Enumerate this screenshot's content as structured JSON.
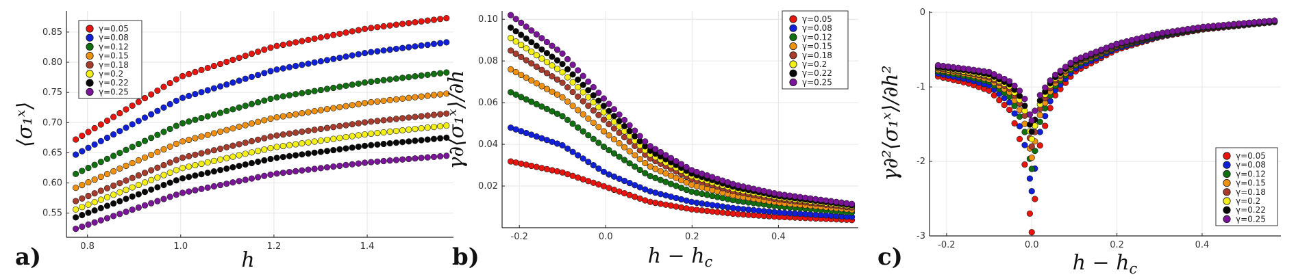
{
  "series_names": [
    "γ=0.05",
    "γ=0.08",
    "γ=0.12",
    "γ=0.15",
    "γ=0.18",
    "γ=0.2",
    "γ=0.22",
    "γ=0.25"
  ],
  "series_colors": [
    "#e8140e",
    "#1020d8",
    "#107010",
    "#f09010",
    "#a83c2c",
    "#f4f014",
    "#080808",
    "#7a1498"
  ],
  "chart_data": [
    {
      "type": "scatter",
      "panel": "a)",
      "xlabel": "h",
      "ylabel": "⟨σ₁ˣ⟩",
      "xlim": [
        0.755,
        1.585
      ],
      "ylim": [
        0.51,
        0.885
      ],
      "xticks": [
        0.8,
        1.0,
        1.2,
        1.4
      ],
      "xtick_labels": [
        "0.8",
        "1.0",
        "1.2",
        "1.4"
      ],
      "yticks": [
        0.55,
        0.6,
        0.65,
        0.7,
        0.75,
        0.8,
        0.85
      ],
      "ytick_labels": [
        "0.55",
        "0.60",
        "0.65",
        "0.70",
        "0.75",
        "0.80",
        "0.85"
      ],
      "grid": true,
      "legend": "top-left",
      "series": [
        {
          "name": "γ=0.05",
          "x": [
            0.775,
            1.0,
            1.2,
            1.4,
            1.57
          ],
          "y": [
            0.672,
            0.776,
            0.826,
            0.856,
            0.873
          ]
        },
        {
          "name": "γ=0.08",
          "x": [
            0.775,
            1.0,
            1.2,
            1.4,
            1.57
          ],
          "y": [
            0.647,
            0.74,
            0.787,
            0.816,
            0.833
          ]
        },
        {
          "name": "γ=0.12",
          "x": [
            0.775,
            1.0,
            1.2,
            1.4,
            1.57
          ],
          "y": [
            0.615,
            0.698,
            0.741,
            0.767,
            0.783
          ]
        },
        {
          "name": "γ=0.15",
          "x": [
            0.775,
            1.0,
            1.2,
            1.4,
            1.57
          ],
          "y": [
            0.592,
            0.668,
            0.708,
            0.733,
            0.748
          ]
        },
        {
          "name": "γ=0.18",
          "x": [
            0.775,
            1.0,
            1.2,
            1.4,
            1.57
          ],
          "y": [
            0.57,
            0.641,
            0.678,
            0.701,
            0.715
          ]
        },
        {
          "name": "γ=0.2",
          "x": [
            0.775,
            1.0,
            1.2,
            1.4,
            1.57
          ],
          "y": [
            0.556,
            0.624,
            0.659,
            0.681,
            0.695
          ]
        },
        {
          "name": "γ=0.22",
          "x": [
            0.775,
            1.0,
            1.2,
            1.4,
            1.57
          ],
          "y": [
            0.543,
            0.607,
            0.641,
            0.662,
            0.675
          ]
        },
        {
          "name": "γ=0.25",
          "x": [
            0.775,
            1.0,
            1.2,
            1.4,
            1.57
          ],
          "y": [
            0.524,
            0.583,
            0.615,
            0.634,
            0.645
          ]
        }
      ]
    },
    {
      "type": "scatter",
      "panel": "b)",
      "xlabel": "h − h_c",
      "ylabel": "γ∂⟨σ₁ˣ⟩/∂h",
      "xlim": [
        -0.24,
        0.585
      ],
      "ylim": [
        0.0,
        0.104
      ],
      "xticks": [
        -0.2,
        0.0,
        0.2,
        0.4
      ],
      "xtick_labels": [
        "-0.2",
        "0.0",
        "0.2",
        "0.4"
      ],
      "yticks": [
        0.02,
        0.04,
        0.06,
        0.08,
        0.1
      ],
      "ytick_labels": [
        "0.02",
        "0.04",
        "0.06",
        "0.08",
        "0.10"
      ],
      "grid": true,
      "legend": "top-right",
      "series": [
        {
          "name": "γ=0.05",
          "x": [
            -0.22,
            -0.1,
            0.0,
            0.1,
            0.2,
            0.3,
            0.4,
            0.57
          ],
          "y": [
            0.0318,
            0.0265,
            0.0196,
            0.0125,
            0.0088,
            0.0066,
            0.0052,
            0.0037
          ]
        },
        {
          "name": "γ=0.08",
          "x": [
            -0.22,
            -0.1,
            0.0,
            0.1,
            0.2,
            0.3,
            0.4,
            0.57
          ],
          "y": [
            0.048,
            0.0395,
            0.0262,
            0.0176,
            0.0123,
            0.0093,
            0.0073,
            0.0052
          ]
        },
        {
          "name": "γ=0.12",
          "x": [
            -0.22,
            -0.1,
            0.0,
            0.1,
            0.2,
            0.3,
            0.4,
            0.57
          ],
          "y": [
            0.065,
            0.0535,
            0.0382,
            0.025,
            0.0172,
            0.013,
            0.0102,
            0.0073
          ]
        },
        {
          "name": "γ=0.15",
          "x": [
            -0.22,
            -0.1,
            0.0,
            0.1,
            0.2,
            0.3,
            0.4,
            0.57
          ],
          "y": [
            0.076,
            0.0625,
            0.0455,
            0.0296,
            0.0205,
            0.0153,
            0.012,
            0.0086
          ]
        },
        {
          "name": "γ=0.18",
          "x": [
            -0.22,
            -0.1,
            0.0,
            0.1,
            0.2,
            0.3,
            0.4,
            0.57
          ],
          "y": [
            0.085,
            0.0695,
            0.051,
            0.0335,
            0.0232,
            0.0173,
            0.0136,
            0.0097
          ]
        },
        {
          "name": "γ=0.2",
          "x": [
            -0.22,
            -0.1,
            0.0,
            0.1,
            0.2,
            0.3,
            0.4,
            0.57
          ],
          "y": [
            0.091,
            0.0745,
            0.0545,
            0.0355,
            0.0247,
            0.0184,
            0.0145,
            0.0103
          ]
        },
        {
          "name": "γ=0.22",
          "x": [
            -0.22,
            -0.1,
            0.0,
            0.1,
            0.2,
            0.3,
            0.4,
            0.57
          ],
          "y": [
            0.096,
            0.0785,
            0.0575,
            0.0373,
            0.0259,
            0.0194,
            0.0152,
            0.0108
          ]
        },
        {
          "name": "γ=0.25",
          "x": [
            -0.22,
            -0.1,
            0.0,
            0.1,
            0.2,
            0.3,
            0.4,
            0.57
          ],
          "y": [
            0.102,
            0.0835,
            0.061,
            0.0395,
            0.0275,
            0.0206,
            0.0161,
            0.0114
          ]
        }
      ]
    },
    {
      "type": "scatter",
      "panel": "c)",
      "xlabel": "h − h_c",
      "ylabel": "γ∂²⟨σ₁ˣ⟩/∂h²",
      "xlim": [
        -0.24,
        0.585
      ],
      "ylim": [
        -3.0,
        0.02
      ],
      "xticks": [
        -0.2,
        0.0,
        0.2,
        0.4
      ],
      "xtick_labels": [
        "-0.2",
        "0.0",
        "0.2",
        "0.4"
      ],
      "yticks": [
        -3,
        -2,
        -1,
        0
      ],
      "ytick_labels": [
        "-3",
        "-2",
        "-1",
        "0"
      ],
      "grid": true,
      "legend": "bottom-right",
      "series": [
        {
          "name": "γ=0.05",
          "x": [
            -0.22,
            -0.15,
            -0.1,
            -0.05,
            -0.02,
            0.0,
            0.02,
            0.05,
            0.1,
            0.2,
            0.3,
            0.4,
            0.57
          ],
          "y": [
            -0.86,
            -0.95,
            -1.05,
            -1.32,
            -1.85,
            -2.95,
            -1.75,
            -1.15,
            -0.8,
            -0.5,
            -0.33,
            -0.23,
            -0.13
          ]
        },
        {
          "name": "γ=0.08",
          "x": [
            -0.22,
            -0.15,
            -0.1,
            -0.05,
            -0.02,
            0.0,
            0.02,
            0.05,
            0.1,
            0.2,
            0.3,
            0.4,
            0.57
          ],
          "y": [
            -0.82,
            -0.9,
            -0.98,
            -1.22,
            -1.65,
            -2.4,
            -1.58,
            -1.08,
            -0.76,
            -0.48,
            -0.32,
            -0.22,
            -0.125
          ]
        },
        {
          "name": "γ=0.12",
          "x": [
            -0.22,
            -0.15,
            -0.1,
            -0.05,
            -0.02,
            0.0,
            0.02,
            0.05,
            0.1,
            0.2,
            0.3,
            0.4,
            0.57
          ],
          "y": [
            -0.79,
            -0.86,
            -0.93,
            -1.14,
            -1.5,
            -2.1,
            -1.45,
            -1.02,
            -0.72,
            -0.46,
            -0.31,
            -0.215,
            -0.12
          ]
        },
        {
          "name": "γ=0.15",
          "x": [
            -0.22,
            -0.15,
            -0.1,
            -0.05,
            -0.02,
            0.0,
            0.02,
            0.05,
            0.1,
            0.2,
            0.3,
            0.4,
            0.57
          ],
          "y": [
            -0.77,
            -0.83,
            -0.9,
            -1.08,
            -1.4,
            -1.95,
            -1.36,
            -0.98,
            -0.7,
            -0.45,
            -0.3,
            -0.21,
            -0.118
          ]
        },
        {
          "name": "γ=0.18",
          "x": [
            -0.22,
            -0.15,
            -0.1,
            -0.05,
            -0.02,
            0.0,
            0.02,
            0.05,
            0.1,
            0.2,
            0.3,
            0.4,
            0.57
          ],
          "y": [
            -0.75,
            -0.81,
            -0.87,
            -1.03,
            -1.3,
            -1.8,
            -1.28,
            -0.94,
            -0.68,
            -0.44,
            -0.295,
            -0.205,
            -0.115
          ]
        },
        {
          "name": "γ=0.2",
          "x": [
            -0.22,
            -0.15,
            -0.1,
            -0.05,
            -0.02,
            0.0,
            0.02,
            0.05,
            0.1,
            0.2,
            0.3,
            0.4,
            0.57
          ],
          "y": [
            -0.74,
            -0.8,
            -0.85,
            -1.0,
            -1.24,
            -1.7,
            -1.22,
            -0.91,
            -0.67,
            -0.43,
            -0.29,
            -0.2,
            -0.113
          ]
        },
        {
          "name": "γ=0.22",
          "x": [
            -0.22,
            -0.15,
            -0.1,
            -0.05,
            -0.02,
            0.0,
            0.02,
            0.05,
            0.1,
            0.2,
            0.3,
            0.4,
            0.57
          ],
          "y": [
            -0.73,
            -0.78,
            -0.83,
            -0.97,
            -1.18,
            -1.6,
            -1.17,
            -0.89,
            -0.66,
            -0.425,
            -0.285,
            -0.198,
            -0.111
          ]
        },
        {
          "name": "γ=0.25",
          "x": [
            -0.22,
            -0.15,
            -0.1,
            -0.05,
            -0.02,
            0.0,
            0.02,
            0.05,
            0.1,
            0.2,
            0.3,
            0.4,
            0.57
          ],
          "y": [
            -0.71,
            -0.76,
            -0.8,
            -0.93,
            -1.1,
            -1.45,
            -1.1,
            -0.86,
            -0.64,
            -0.42,
            -0.28,
            -0.195,
            -0.108
          ]
        }
      ]
    }
  ]
}
